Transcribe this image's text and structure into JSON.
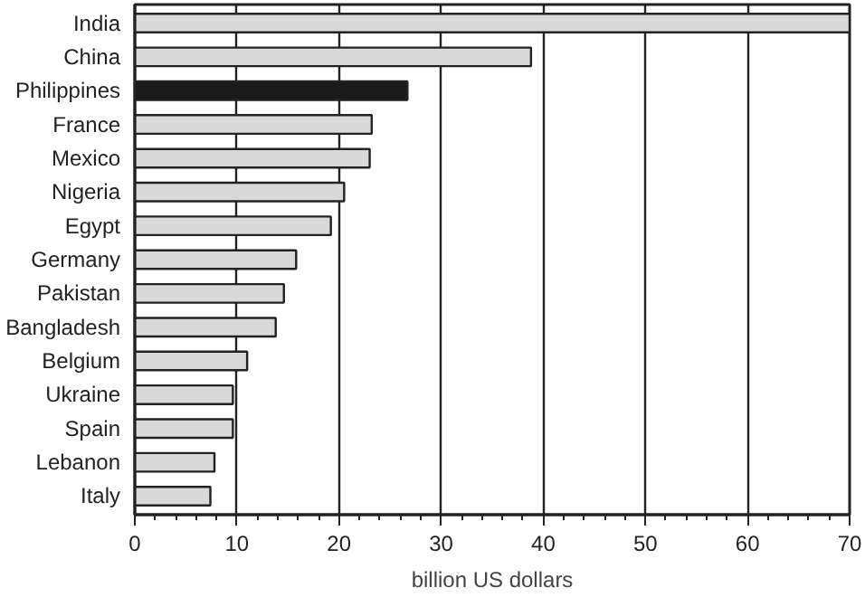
{
  "chart_data": {
    "type": "bar",
    "orientation": "horizontal",
    "xlabel": "billion US dollars",
    "categories": [
      "India",
      "China",
      "Philippines",
      "France",
      "Mexico",
      "Nigeria",
      "Egypt",
      "Germany",
      "Pakistan",
      "Bangladesh",
      "Belgium",
      "Ukraine",
      "Spain",
      "Lebanon",
      "Italy"
    ],
    "values": [
      70,
      38.8,
      26.7,
      23.2,
      23.0,
      20.5,
      19.2,
      15.8,
      14.6,
      13.8,
      11.0,
      9.6,
      9.6,
      7.8,
      7.4
    ],
    "colors": [
      "#d9d9d9",
      "#d9d9d9",
      "#1a1a1a",
      "#d9d9d9",
      "#d9d9d9",
      "#d9d9d9",
      "#d9d9d9",
      "#d9d9d9",
      "#d9d9d9",
      "#d9d9d9",
      "#d9d9d9",
      "#d9d9d9",
      "#d9d9d9",
      "#d9d9d9",
      "#d9d9d9"
    ],
    "xlim": [
      0,
      70
    ],
    "xticks": [
      0,
      10,
      20,
      30,
      40,
      50,
      60,
      70
    ],
    "grid": "x"
  }
}
